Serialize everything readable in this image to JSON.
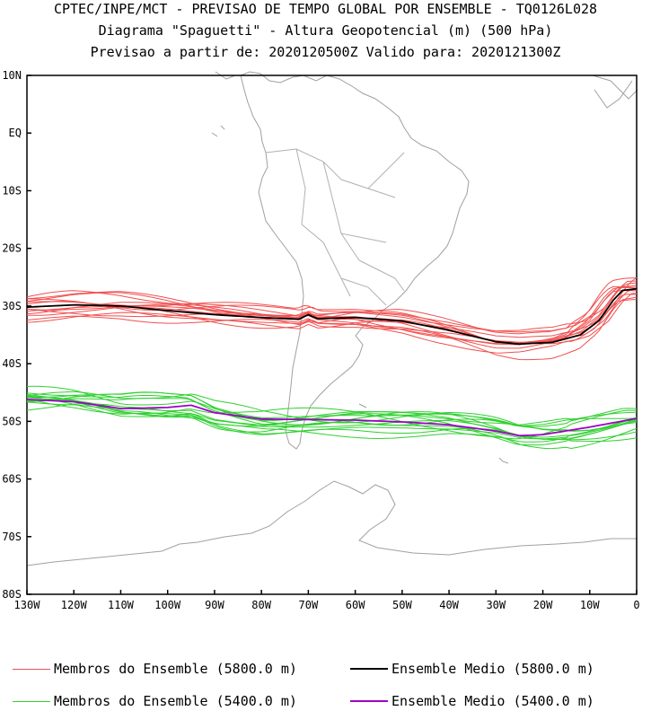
{
  "title": {
    "line1": "CPTEC/INPE/MCT - PREVISAO DE TEMPO GLOBAL POR ENSEMBLE - TQ0126L028",
    "line2": "Diagrama \"Spaguetti\" - Altura Geopotencial (m) (500 hPa)",
    "line3": "Previsao a partir de: 2020120500Z  Valido para: 2020121300Z"
  },
  "map": {
    "lat_labels": [
      "10N",
      "EQ",
      "10S",
      "20S",
      "30S",
      "40S",
      "50S",
      "60S",
      "70S",
      "80S"
    ],
    "lon_labels": [
      "130W",
      "120W",
      "110W",
      "100W",
      "90W",
      "80W",
      "70W",
      "60W",
      "50W",
      "40W",
      "30W",
      "20W",
      "10W",
      "0"
    ],
    "lat_range": [
      -80,
      10
    ],
    "lon_range": [
      -130,
      0
    ],
    "coastline_color": "#a0a0a0"
  },
  "legend": {
    "items": [
      {
        "label": "Membros do Ensemble (5800.0 m)",
        "color": "#f05050"
      },
      {
        "label": "Ensemble Medio (5800.0 m)",
        "color": "#000000"
      },
      {
        "label": "Membros do Ensemble (5400.0 m)",
        "color": "#30d030"
      },
      {
        "label": "Ensemble Medio (5400.0 m)",
        "color": "#a000c8"
      }
    ]
  }
}
